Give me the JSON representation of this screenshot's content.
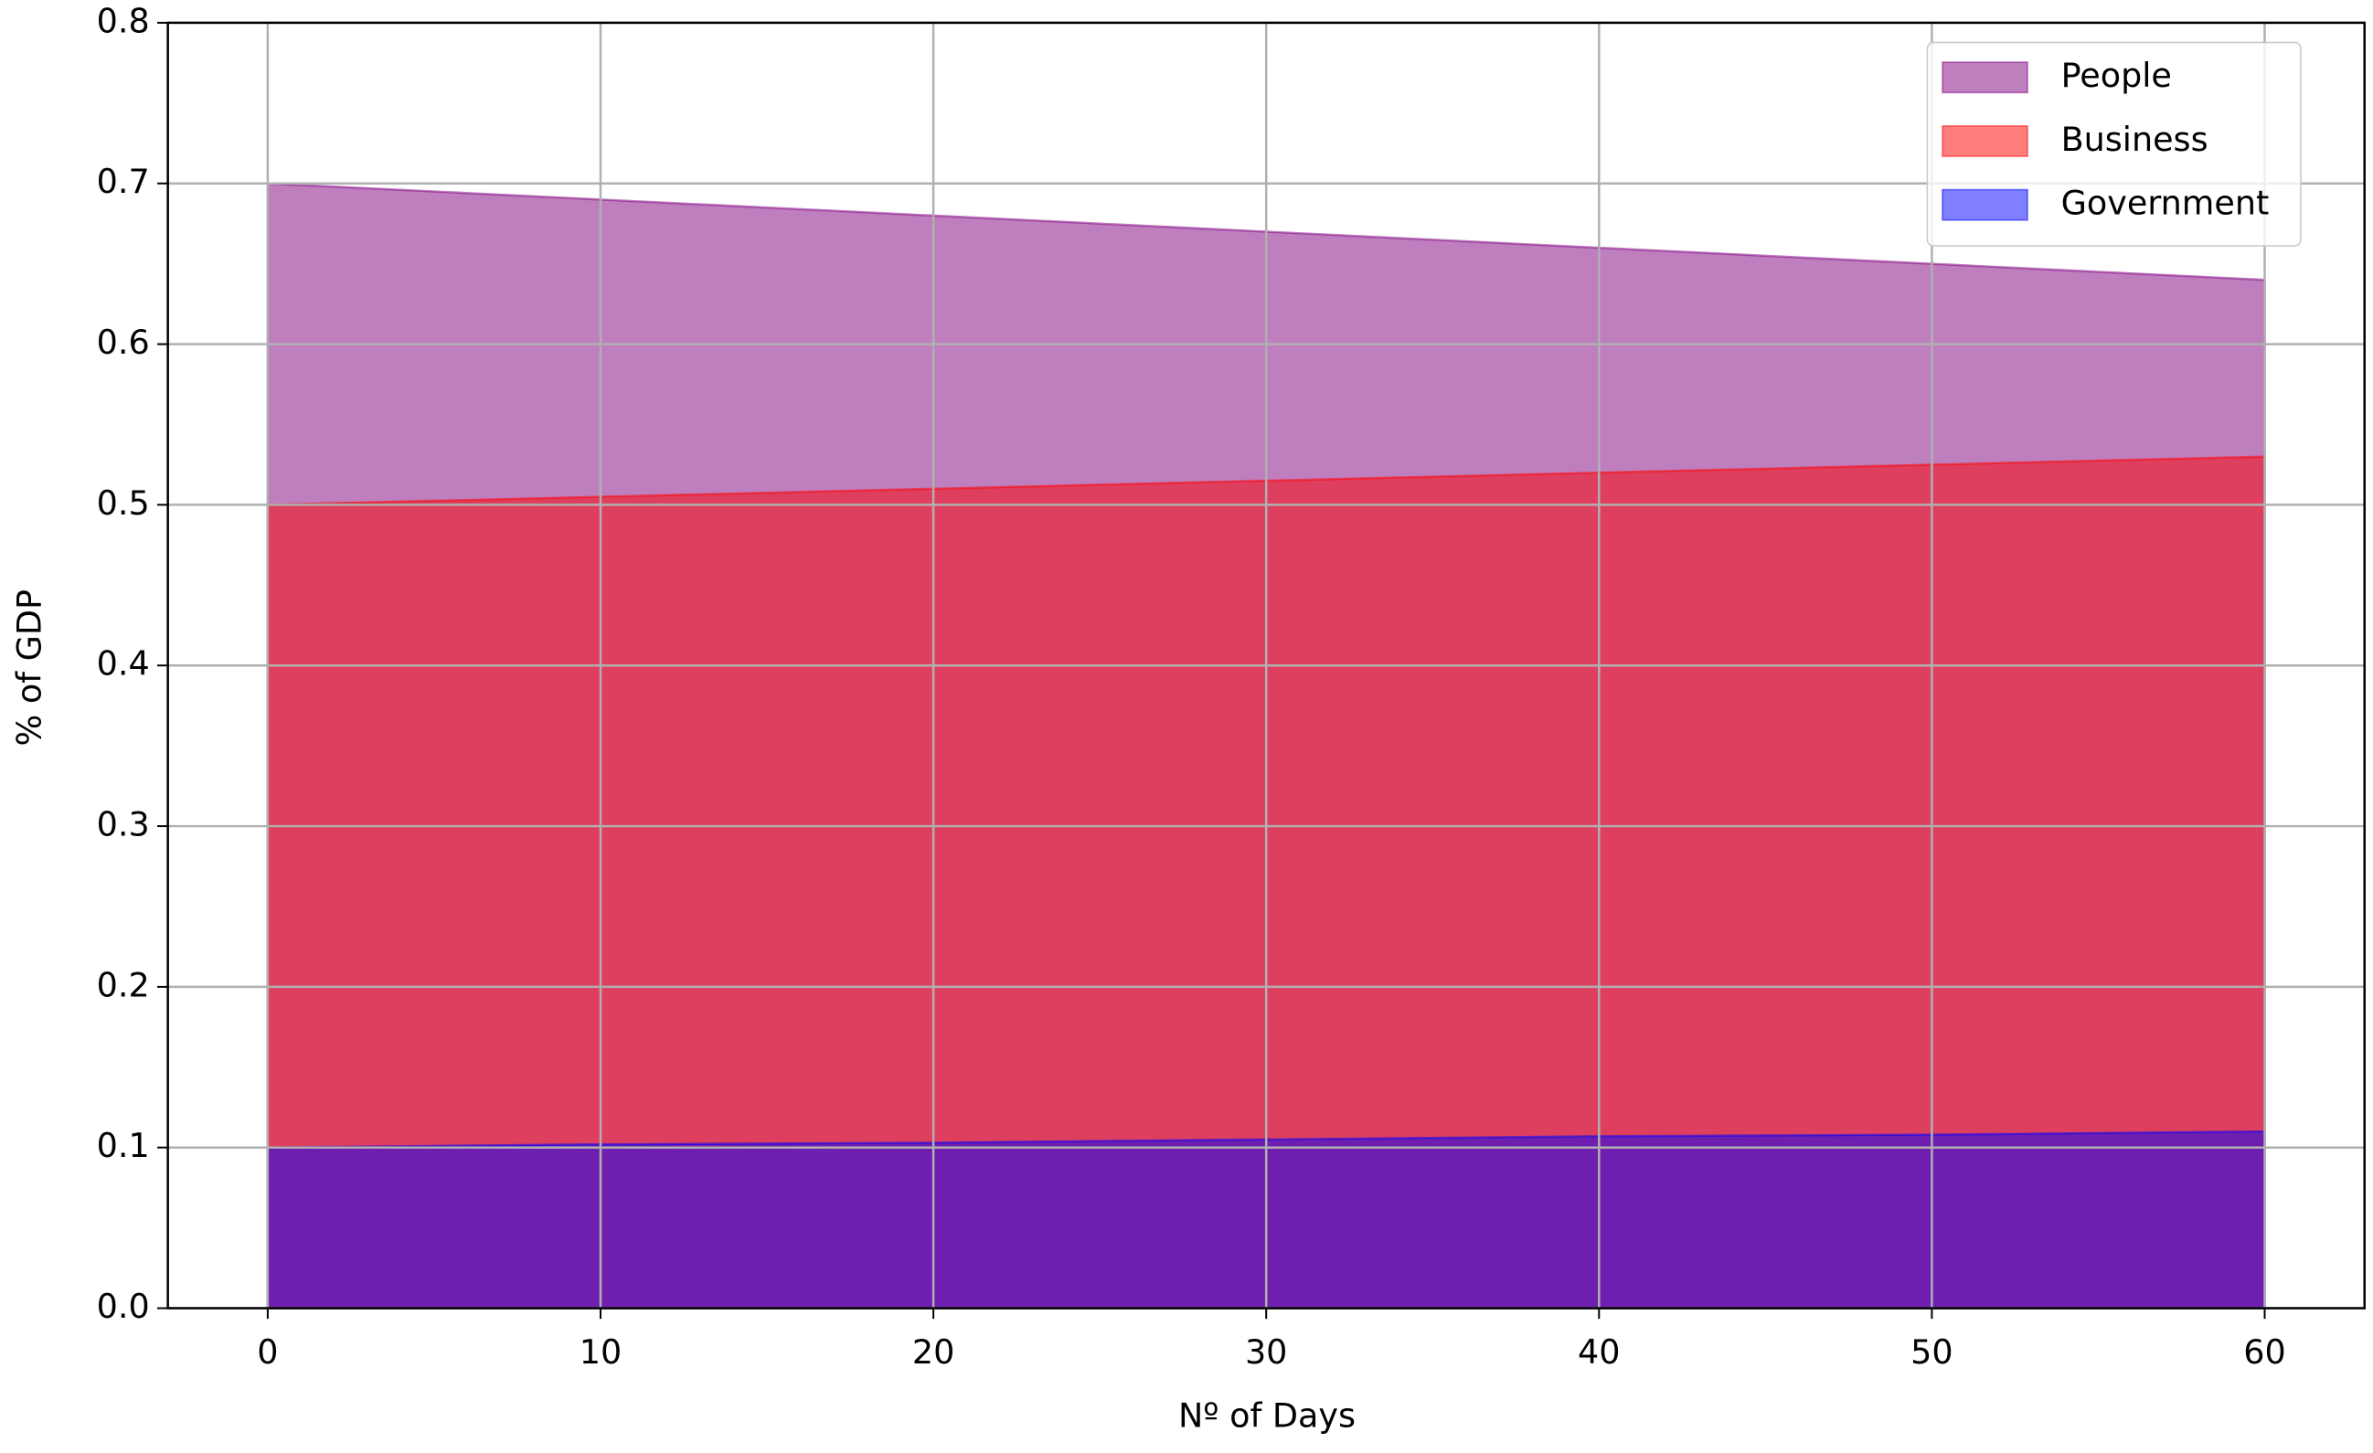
{
  "chart_data": {
    "type": "stackplot",
    "xlabel": "Nº of Days",
    "ylabel": "% of GDP",
    "x": [
      0,
      10,
      20,
      30,
      40,
      50,
      60
    ],
    "series": [
      {
        "name": "People",
        "color": "#800080",
        "values": [
          0.2,
          0.185,
          0.17,
          0.155,
          0.14,
          0.125,
          0.11
        ]
      },
      {
        "name": "Business",
        "color": "#ff0000",
        "values": [
          0.4,
          0.403,
          0.407,
          0.41,
          0.413,
          0.417,
          0.42
        ]
      },
      {
        "name": "Government",
        "color": "#0000ff",
        "values": [
          0.1,
          0.102,
          0.103,
          0.105,
          0.107,
          0.108,
          0.11
        ]
      }
    ],
    "stack_order": [
      "Government",
      "Business",
      "People"
    ],
    "xlim": [
      -3,
      63
    ],
    "ylim": [
      0,
      0.8
    ],
    "xticks": [
      0,
      10,
      20,
      30,
      40,
      50,
      60
    ],
    "yticks": [
      {
        "value": 0,
        "label": "0.0"
      },
      0.1,
      0.2,
      0.3,
      0.4,
      0.5,
      0.6,
      0.7,
      0.8
    ],
    "grid": true,
    "legend": "upper right",
    "alpha": 0.5
  }
}
